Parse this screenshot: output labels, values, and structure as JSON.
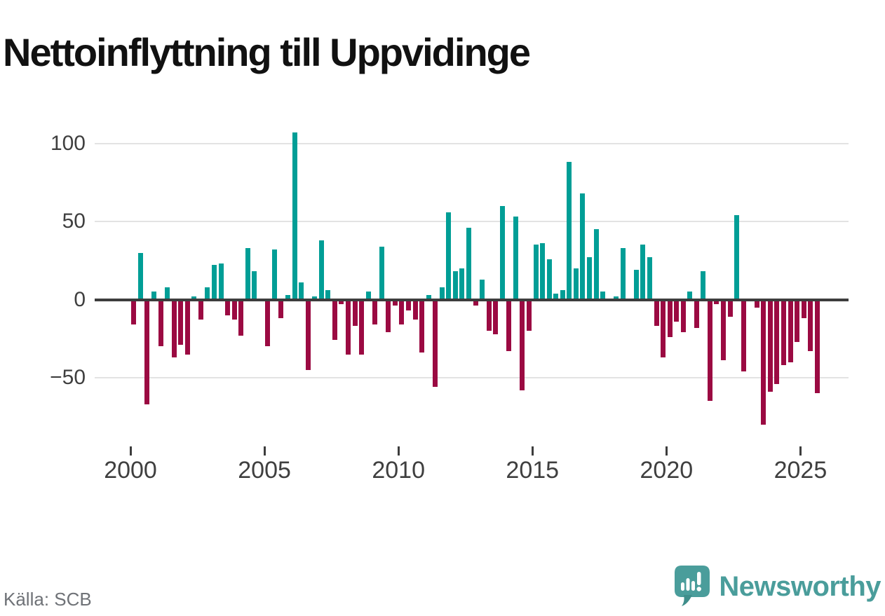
{
  "title": "Nettoinflyttning till Uppvidinge",
  "source": {
    "label": "Källa: SCB"
  },
  "branding": {
    "name": "Newsworthy",
    "icon": "newsworthy-speech-bubble-chart-icon",
    "color": "#4A9D9B"
  },
  "colors": {
    "positive": "#009E96",
    "negative": "#9B0A42",
    "zero_line": "#3D3D3D",
    "gridline": "#E3E3E3",
    "axis_text": "#3F3F3F",
    "title_text": "#111111",
    "source_text": "#6F7277"
  },
  "chart_data": {
    "type": "bar",
    "title": "Nettoinflyttning till Uppvidinge",
    "frequency": "quarterly",
    "grid": "horizontal",
    "legend": "none",
    "xlabel": "",
    "ylabel": "",
    "y_ticks": [
      100,
      50,
      0,
      -50
    ],
    "ylim": [
      -85,
      115
    ],
    "x_tick_labels": [
      "2000",
      "2005",
      "2010",
      "2015",
      "2020",
      "2025"
    ],
    "series_name": "Nettoinflyttning",
    "years": [
      "2000",
      "2001",
      "2002",
      "2003",
      "2004",
      "2005",
      "2006",
      "2007",
      "2008",
      "2009",
      "2010",
      "2011",
      "2012",
      "2013",
      "2014",
      "2015",
      "2016",
      "2017",
      "2018",
      "2019",
      "2020",
      "2021",
      "2022",
      "2023",
      "2024",
      "2025"
    ],
    "values_by_year": {
      "2000": [
        -16,
        30,
        -67,
        5
      ],
      "2001": [
        -30,
        8,
        -37,
        -29
      ],
      "2002": [
        -35,
        2,
        -13,
        8
      ],
      "2003": [
        22,
        23,
        -10,
        -13
      ],
      "2004": [
        -23,
        33,
        18,
        0
      ],
      "2005": [
        -30,
        32,
        -12,
        3
      ],
      "2006": [
        107,
        11,
        -45,
        2
      ],
      "2007": [
        38,
        6,
        -26,
        -3
      ],
      "2008": [
        -35,
        -17,
        -35,
        5
      ],
      "2009": [
        -16,
        34,
        -21,
        -4
      ],
      "2010": [
        -16,
        -7,
        -13,
        -34
      ],
      "2011": [
        3,
        -56,
        8,
        56
      ],
      "2012": [
        18,
        20,
        46,
        -4
      ],
      "2013": [
        13,
        -20,
        -22,
        60
      ],
      "2014": [
        -33,
        53,
        -58,
        -20
      ],
      "2015": [
        35,
        36,
        26,
        4
      ],
      "2016": [
        6,
        88,
        20,
        68
      ],
      "2017": [
        27,
        45,
        5,
        0
      ],
      "2018": [
        2,
        33,
        0,
        19
      ],
      "2019": [
        35,
        27,
        -17,
        -37
      ],
      "2020": [
        -24,
        -14,
        -21,
        5
      ],
      "2021": [
        -18,
        18,
        -65,
        -3
      ],
      "2022": [
        -39,
        -11,
        54,
        -46
      ],
      "2023": [
        0,
        -5,
        -80,
        -59
      ],
      "2024": [
        -54,
        -42,
        -40,
        -27
      ],
      "2025": [
        -12,
        -33,
        -60
      ]
    }
  }
}
